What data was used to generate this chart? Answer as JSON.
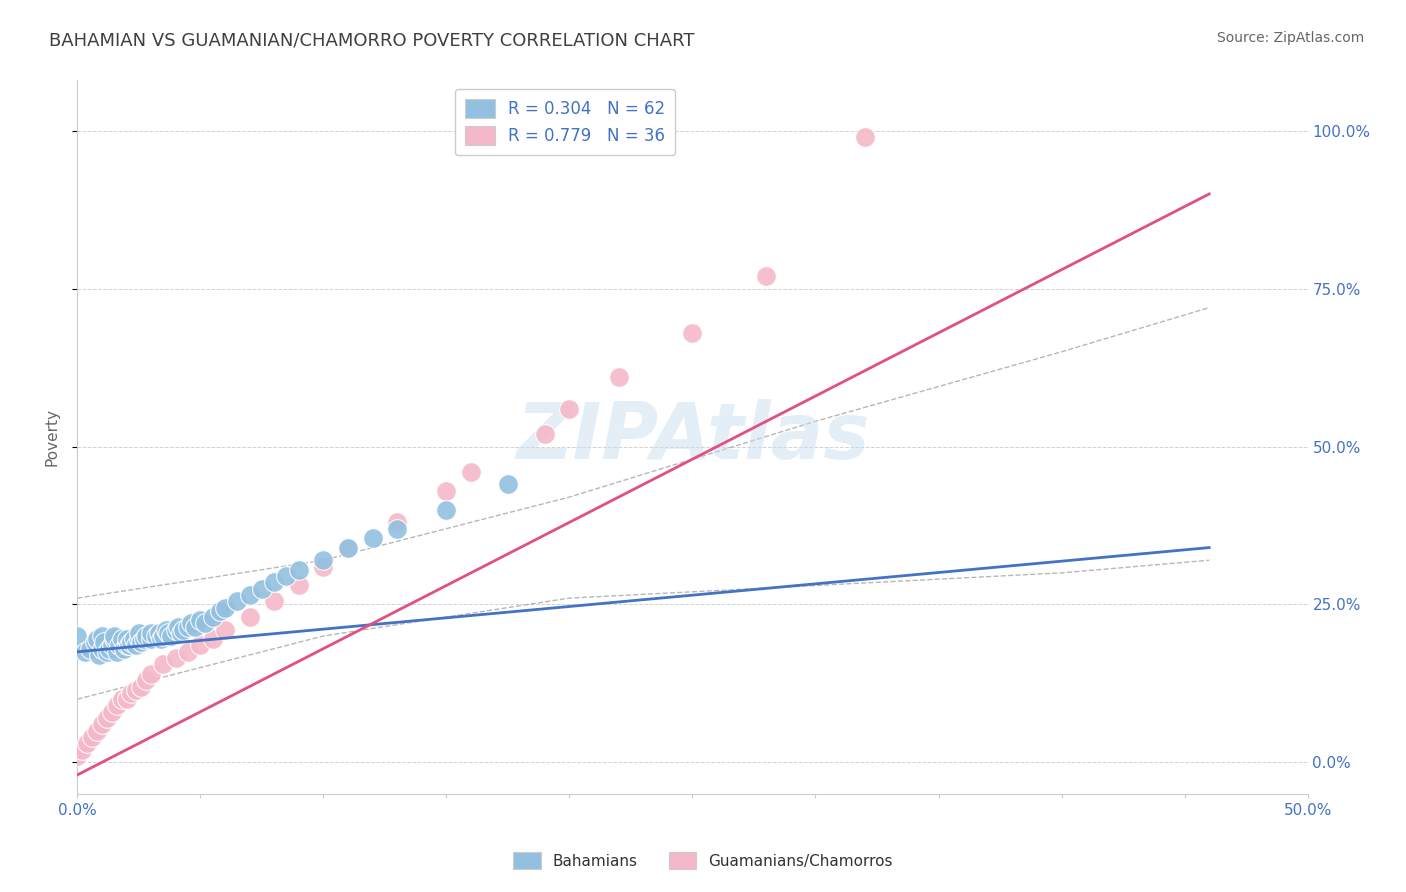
{
  "title": "BAHAMIAN VS GUAMANIAN/CHAMORRO POVERTY CORRELATION CHART",
  "source_text": "Source: ZipAtlas.com",
  "ylabel": "Poverty",
  "xlim": [
    0.0,
    0.5
  ],
  "ylim": [
    -0.05,
    1.08
  ],
  "xticks": [
    0.0,
    0.05,
    0.1,
    0.15,
    0.2,
    0.25,
    0.3,
    0.35,
    0.4,
    0.45,
    0.5
  ],
  "ytick_labels_right": [
    "0.0%",
    "25.0%",
    "50.0%",
    "75.0%",
    "100.0%"
  ],
  "ytick_vals_right": [
    0.0,
    0.25,
    0.5,
    0.75,
    1.0
  ],
  "blue_color": "#92c0e0",
  "blue_color_dark": "#4472c4",
  "pink_color": "#f4b8c8",
  "pink_color_dark": "#e05080",
  "legend_label_blue": "Bahamians",
  "legend_label_pink": "Guamanians/Chamorros",
  "watermark": "ZIPAtlas",
  "title_color": "#404040",
  "source_color": "#666666",
  "axis_label_color": "#666666",
  "tick_color_blue": "#4472c4",
  "background_color": "#ffffff",
  "grid_color": "#cccccc",
  "blue_scatter_x": [
    0.0,
    0.003,
    0.005,
    0.007,
    0.008,
    0.009,
    0.01,
    0.01,
    0.011,
    0.012,
    0.013,
    0.014,
    0.015,
    0.015,
    0.016,
    0.017,
    0.018,
    0.019,
    0.02,
    0.02,
    0.021,
    0.022,
    0.023,
    0.024,
    0.025,
    0.025,
    0.026,
    0.027,
    0.028,
    0.03,
    0.03,
    0.032,
    0.033,
    0.034,
    0.035,
    0.036,
    0.037,
    0.038,
    0.04,
    0.041,
    0.042,
    0.043,
    0.045,
    0.046,
    0.048,
    0.05,
    0.052,
    0.055,
    0.058,
    0.06,
    0.065,
    0.07,
    0.075,
    0.08,
    0.085,
    0.09,
    0.1,
    0.11,
    0.12,
    0.13,
    0.15,
    0.175
  ],
  "blue_scatter_y": [
    0.2,
    0.175,
    0.18,
    0.19,
    0.195,
    0.17,
    0.18,
    0.2,
    0.19,
    0.175,
    0.18,
    0.185,
    0.195,
    0.2,
    0.175,
    0.185,
    0.195,
    0.18,
    0.185,
    0.195,
    0.185,
    0.19,
    0.195,
    0.185,
    0.195,
    0.205,
    0.19,
    0.195,
    0.2,
    0.195,
    0.205,
    0.2,
    0.205,
    0.195,
    0.2,
    0.21,
    0.205,
    0.2,
    0.21,
    0.215,
    0.205,
    0.21,
    0.215,
    0.22,
    0.215,
    0.225,
    0.22,
    0.23,
    0.24,
    0.245,
    0.255,
    0.265,
    0.275,
    0.285,
    0.295,
    0.305,
    0.32,
    0.34,
    0.355,
    0.37,
    0.4,
    0.44
  ],
  "pink_scatter_x": [
    0.0,
    0.002,
    0.004,
    0.006,
    0.008,
    0.01,
    0.012,
    0.014,
    0.016,
    0.018,
    0.02,
    0.022,
    0.024,
    0.026,
    0.028,
    0.03,
    0.035,
    0.04,
    0.045,
    0.05,
    0.055,
    0.06,
    0.07,
    0.08,
    0.09,
    0.1,
    0.11,
    0.13,
    0.15,
    0.16,
    0.19,
    0.2,
    0.22,
    0.25,
    0.28,
    0.32
  ],
  "pink_scatter_y": [
    0.01,
    0.02,
    0.03,
    0.04,
    0.05,
    0.06,
    0.07,
    0.08,
    0.09,
    0.1,
    0.1,
    0.11,
    0.115,
    0.12,
    0.13,
    0.14,
    0.155,
    0.165,
    0.175,
    0.185,
    0.195,
    0.21,
    0.23,
    0.255,
    0.28,
    0.31,
    0.34,
    0.38,
    0.43,
    0.46,
    0.52,
    0.56,
    0.61,
    0.68,
    0.77,
    0.99
  ],
  "blue_line_x": [
    0.0,
    0.46
  ],
  "blue_line_y": [
    0.175,
    0.34
  ],
  "pink_line_x": [
    0.0,
    0.46
  ],
  "pink_line_y": [
    -0.02,
    0.9
  ],
  "conf_upper_x": [
    0.0,
    0.1,
    0.2,
    0.3,
    0.4,
    0.46
  ],
  "conf_upper_y": [
    0.26,
    0.32,
    0.42,
    0.54,
    0.65,
    0.72
  ],
  "conf_lower_x": [
    0.0,
    0.1,
    0.2,
    0.3,
    0.4,
    0.46
  ],
  "conf_lower_y": [
    0.1,
    0.2,
    0.26,
    0.28,
    0.3,
    0.32
  ]
}
